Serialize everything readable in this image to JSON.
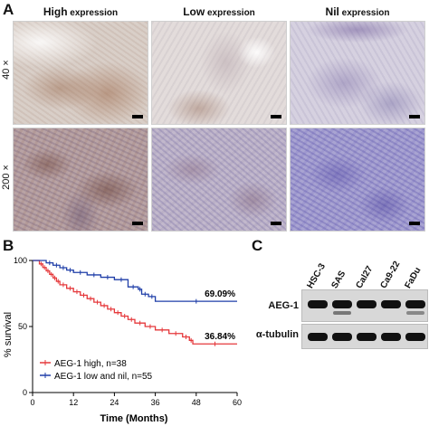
{
  "panel_a": {
    "letter": "A",
    "columns": [
      {
        "main": "High",
        "suffix": " expression"
      },
      {
        "main": "Low",
        "suffix": " expression"
      },
      {
        "main": "Nil",
        "suffix": " expression"
      }
    ],
    "rows": [
      "40 ×",
      "200 ×"
    ]
  },
  "panel_b": {
    "letter": "B",
    "chart_data": {
      "type": "line",
      "ylabel": "% survival",
      "xlabel": "Time (Months)",
      "xlim": [
        0,
        60
      ],
      "ylim": [
        0,
        100
      ],
      "xticks": [
        "0",
        "12",
        "24",
        "36",
        "48",
        "60"
      ],
      "yticks": [
        "0",
        "50",
        "100"
      ],
      "series": [
        {
          "name": "AEG-1 high, n=38",
          "color": "#e5383b",
          "end_label": "36.84%",
          "x": [
            0,
            2,
            3,
            4,
            5,
            6,
            7,
            8,
            10,
            12,
            14,
            16,
            18,
            20,
            22,
            24,
            26,
            28,
            30,
            33,
            36,
            40,
            44,
            46,
            47,
            60
          ],
          "y": [
            100,
            97.4,
            94.7,
            92.1,
            89.5,
            86.8,
            84.2,
            81.6,
            78.9,
            76.3,
            73.7,
            71.1,
            68.4,
            65.8,
            63.2,
            60.5,
            57.9,
            55.3,
            52.6,
            50.0,
            47.4,
            44.7,
            42.1,
            39.5,
            36.84,
            36.84
          ]
        },
        {
          "name": "AEG-1 low and nil, n=55",
          "color": "#1f3ea8",
          "end_label": "69.09%",
          "x": [
            0,
            4,
            6,
            8,
            10,
            12,
            16,
            20,
            24,
            28,
            31,
            32,
            34,
            36,
            60
          ],
          "y": [
            100,
            98.2,
            96.4,
            94.5,
            92.7,
            90.9,
            89.1,
            87.3,
            85.5,
            80.0,
            78.2,
            74.5,
            72.7,
            69.09,
            69.09
          ]
        }
      ]
    }
  },
  "panel_c": {
    "letter": "C",
    "lanes": [
      "HSC-3",
      "SAS",
      "Cal27",
      "Ca9-22",
      "FaDu"
    ],
    "bands": [
      "AEG-1",
      "α-tubulin"
    ]
  }
}
